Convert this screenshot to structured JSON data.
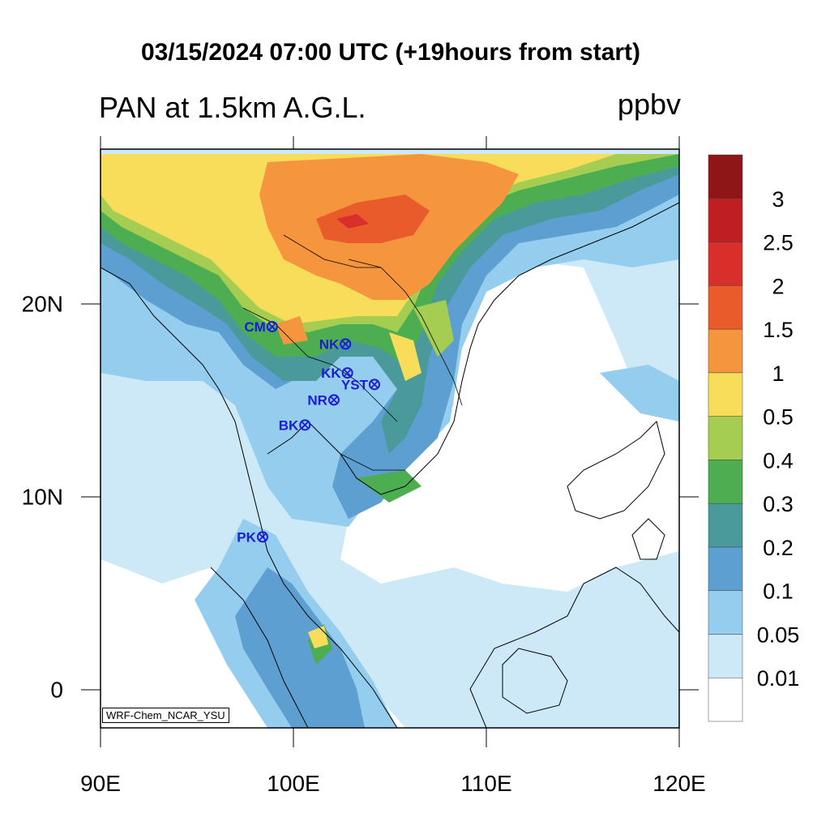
{
  "title": "03/15/2024 07:00 UTC (+19hours from start)",
  "left_subtitle": "PAN at 1.5km A.G.L.",
  "right_subtitle": "ppbv",
  "credit": "WRF-Chem_NCAR_YSU",
  "map": {
    "lon_range": [
      90,
      120
    ],
    "lat_range": [
      -2,
      28
    ],
    "x_ticks": [
      {
        "lon": 90,
        "label": "90E"
      },
      {
        "lon": 100,
        "label": "100E"
      },
      {
        "lon": 110,
        "label": "110E"
      },
      {
        "lon": 120,
        "label": "120E"
      }
    ],
    "y_ticks": [
      {
        "lat": 0,
        "label": "0"
      },
      {
        "lat": 10,
        "label": "10N"
      },
      {
        "lat": 20,
        "label": "20N"
      }
    ]
  },
  "colorbar": {
    "colors": [
      "#ffffff",
      "#cde9f7",
      "#94cdee",
      "#5e9fd2",
      "#4a9a9b",
      "#4cae50",
      "#a5cd51",
      "#f8dd5a",
      "#f5953d",
      "#e95b2b",
      "#d82f2b",
      "#bf1e22",
      "#8f1616"
    ],
    "labels": [
      "0.01",
      "0.05",
      "0.1",
      "0.2",
      "0.3",
      "0.4",
      "0.5",
      "1",
      "1.5",
      "2",
      "2.5",
      "3"
    ]
  },
  "stations": [
    {
      "code": "CM",
      "lon": 98.9,
      "lat": 18.8
    },
    {
      "code": "NK",
      "lon": 102.7,
      "lat": 17.9
    },
    {
      "code": "KK",
      "lon": 102.8,
      "lat": 16.4
    },
    {
      "code": "YST",
      "lon": 104.2,
      "lat": 15.8
    },
    {
      "code": "NR",
      "lon": 102.1,
      "lat": 15.0
    },
    {
      "code": "BK",
      "lon": 100.6,
      "lat": 13.7
    },
    {
      "code": "PK",
      "lon": 98.4,
      "lat": 7.9
    }
  ]
}
